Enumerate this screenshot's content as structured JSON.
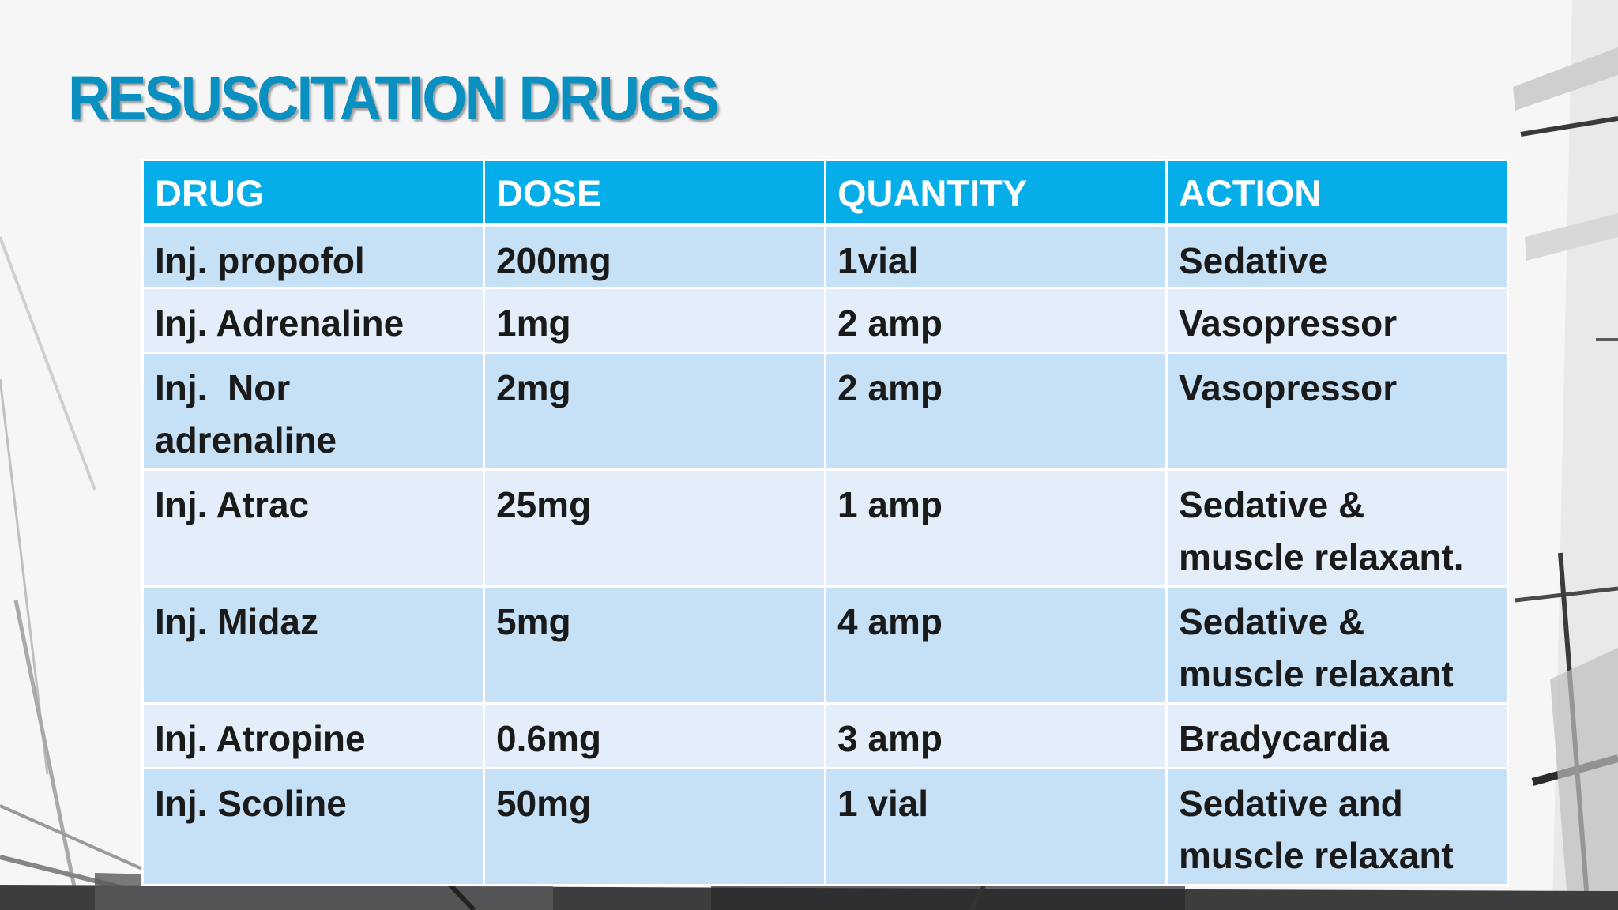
{
  "title": "RESUSCITATION DRUGS",
  "colors": {
    "title": "#0a8fc1",
    "header_bg": "#05aee9",
    "row_odd": "#c6e0f6",
    "row_even": "#e4eefa"
  },
  "table": {
    "headers": [
      "DRUG",
      "DOSE",
      "QUANTITY",
      "ACTION"
    ],
    "rows": [
      {
        "drug": "Inj. propofol",
        "dose": "200mg",
        "quantity": "1vial",
        "action": "Sedative"
      },
      {
        "drug": "Inj. Adrenaline",
        "dose": "1mg",
        "quantity": "2 amp",
        "action": "Vasopressor"
      },
      {
        "drug": "Inj.  Nor adrenaline",
        "dose": "2mg",
        "quantity": "2 amp",
        "action": "Vasopressor"
      },
      {
        "drug": "Inj. Atrac",
        "dose": "25mg",
        "quantity": "1 amp",
        "action": "Sedative & muscle relaxant."
      },
      {
        "drug": "Inj. Midaz",
        "dose": "5mg",
        "quantity": "4 amp",
        "action": "Sedative & muscle relaxant"
      },
      {
        "drug": "Inj. Atropine",
        "dose": "0.6mg",
        "quantity": "3 amp",
        "action": "Bradycardia"
      },
      {
        "drug": "Inj. Scoline",
        "dose": "50mg",
        "quantity": "1 vial",
        "action": "Sedative and muscle relaxant"
      }
    ]
  }
}
